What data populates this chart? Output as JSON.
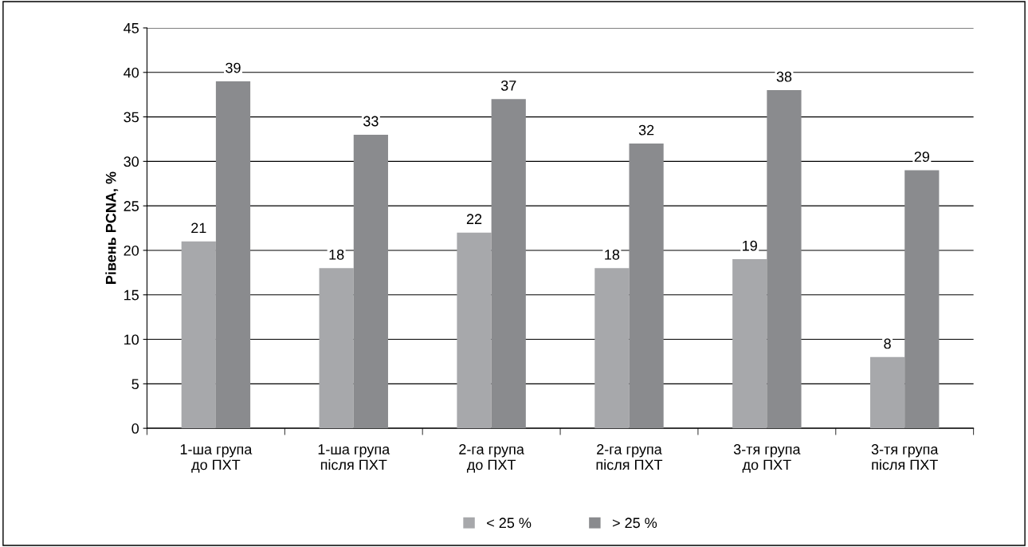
{
  "chart_data": {
    "type": "bar",
    "ylabel": "Рівень PCNA, %",
    "categories": [
      "1-ша група\nдо ПХТ",
      "1-ша група\nпісля ПХТ",
      "2-га група\nдо ПХТ",
      "2-га група\nпісля ПХТ",
      "3-тя група\nдо ПХТ",
      "3-тя група\nпісля ПХТ"
    ],
    "series": [
      {
        "name": "< 25 %",
        "color": "#a7a8ab",
        "values": [
          21,
          18,
          22,
          18,
          19,
          8
        ]
      },
      {
        "name": "> 25 %",
        "color": "#8a8b8e",
        "values": [
          39,
          33,
          37,
          32,
          38,
          29
        ]
      }
    ],
    "ylim": [
      0,
      45
    ],
    "yticks": [
      0,
      5,
      10,
      15,
      20,
      25,
      30,
      35,
      40,
      45
    ],
    "grid": "y",
    "legend": "bottom",
    "data_labels": true
  }
}
